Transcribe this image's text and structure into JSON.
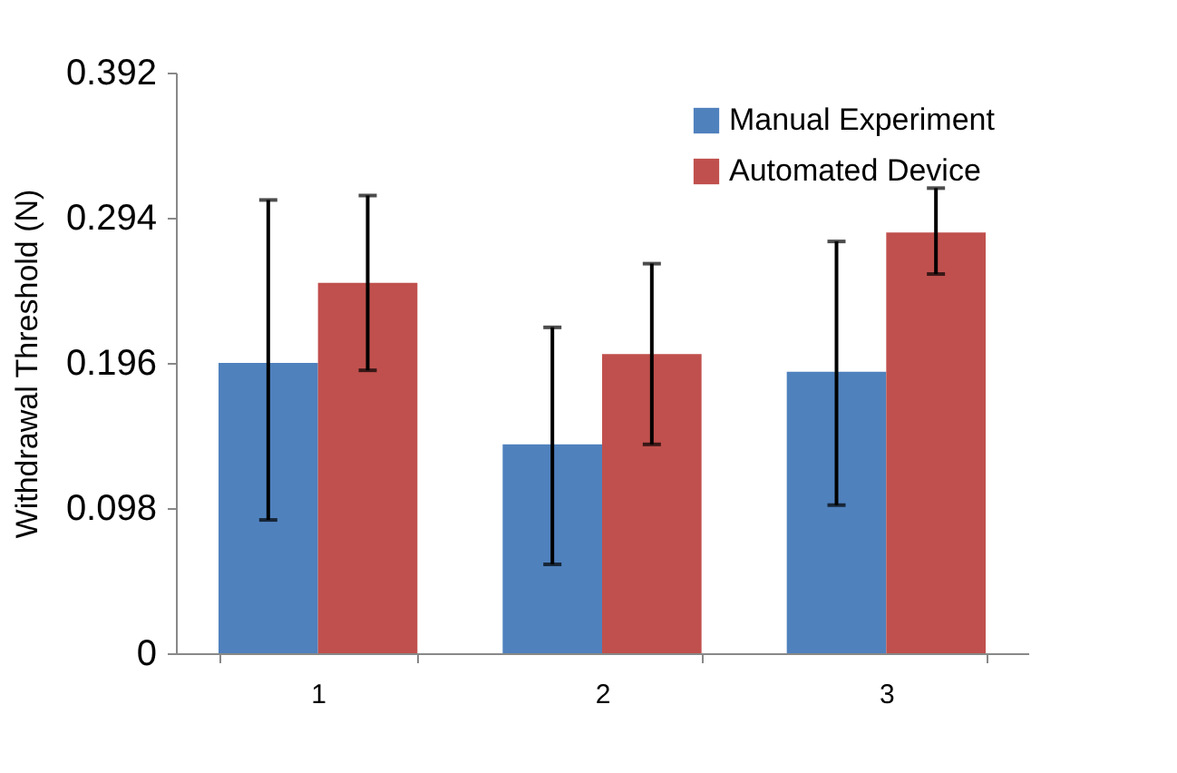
{
  "chart_data": {
    "type": "bar",
    "ylabel": "Withdrawal Threshold (N)",
    "categories": [
      "1",
      "2",
      "3"
    ],
    "series": [
      {
        "name": "Manual Experiment",
        "color": "#4f81bd",
        "values": [
          0.196,
          0.141,
          0.19
        ],
        "errors": [
          [
            0.09,
            0.306
          ],
          [
            0.06,
            0.22
          ],
          [
            0.1,
            0.278
          ]
        ]
      },
      {
        "name": "Automated Device",
        "color": "#c0504d",
        "values": [
          0.25,
          0.202,
          0.284
        ],
        "errors": [
          [
            0.191,
            0.309
          ],
          [
            0.141,
            0.263
          ],
          [
            0.256,
            0.314
          ]
        ]
      }
    ],
    "ylim": [
      0,
      0.392
    ],
    "yticks": [
      0,
      0.098,
      0.196,
      0.294,
      0.392
    ],
    "grid": false,
    "legend": "top right"
  }
}
